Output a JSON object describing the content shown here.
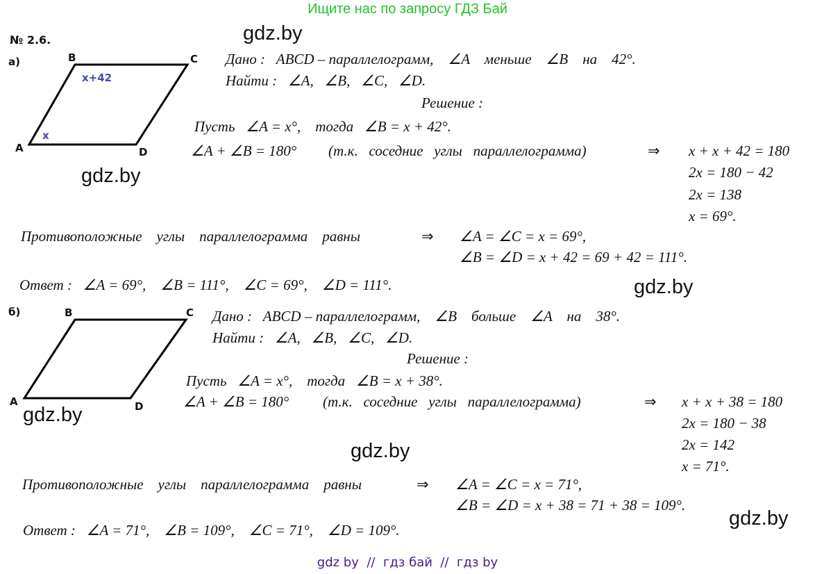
{
  "header_banner": "Ищите нас по запросу ГДЗ Бай",
  "problem_number": "№ 2.6.",
  "watermark": "gdz.by",
  "footer": "gdz by  //  гдз бай  //  гдз by",
  "part_a": {
    "label": "а)",
    "vertices": {
      "A": "A",
      "B": "B",
      "C": "C",
      "D": "D"
    },
    "angle_labels": {
      "B": "x+42",
      "A": "x"
    },
    "given": "Дано :   ABCD – параллелограмм,    ∠A    меньше    ∠B    на    42°.",
    "find": "Найти :   ∠A,   ∠B,   ∠C,   ∠D.",
    "solution_title": "Решение :",
    "let": "Пусть   ∠A = x°,    тогда   ∠B = x + 42°.",
    "sum": "∠A + ∠B = 180°",
    "reason": "(т.к.   соседние   углы   параллелограмма)",
    "implies": "⇒",
    "eqs": [
      "x + x + 42 = 180",
      "2x = 180 − 42",
      "2x = 138",
      "x = 69°."
    ],
    "opposite": "Противоположные    углы    параллелограмма    равны",
    "opp_eq1": "∠A = ∠C = x = 69°,",
    "opp_eq2": "∠B = ∠D = x + 42 = 69 + 42 = 111°.",
    "answer": "Ответ :   ∠A = 69°,    ∠B = 111°,    ∠C = 69°,    ∠D = 111°."
  },
  "part_b": {
    "label": "б)",
    "vertices": {
      "A": "A",
      "B": "B",
      "C": "C",
      "D": "D"
    },
    "given": "Дано :   ABCD – параллелограмм,    ∠B    больше    ∠A    на    38°.",
    "find": "Найти :   ∠A,   ∠B,   ∠C,   ∠D.",
    "solution_title": "Решение :",
    "let": "Пусть   ∠A = x°,    тогда   ∠B = x + 38°.",
    "sum": "∠A + ∠B = 180°",
    "reason": "(т.к.   соседние   углы   параллелограмма)",
    "implies": "⇒",
    "eqs": [
      "x + x + 38 = 180",
      "2x = 180 − 38",
      "2x = 142",
      "x = 71°."
    ],
    "opposite": "Противоположные    углы    параллелограмма    равны",
    "opp_eq1": "∠A = ∠C = x = 71°,",
    "opp_eq2": "∠B = ∠D = x + 38 = 71 + 38 = 109°.",
    "answer": "Ответ :   ∠A = 71°,    ∠B = 109°,    ∠C = 71°,    ∠D = 109°."
  }
}
